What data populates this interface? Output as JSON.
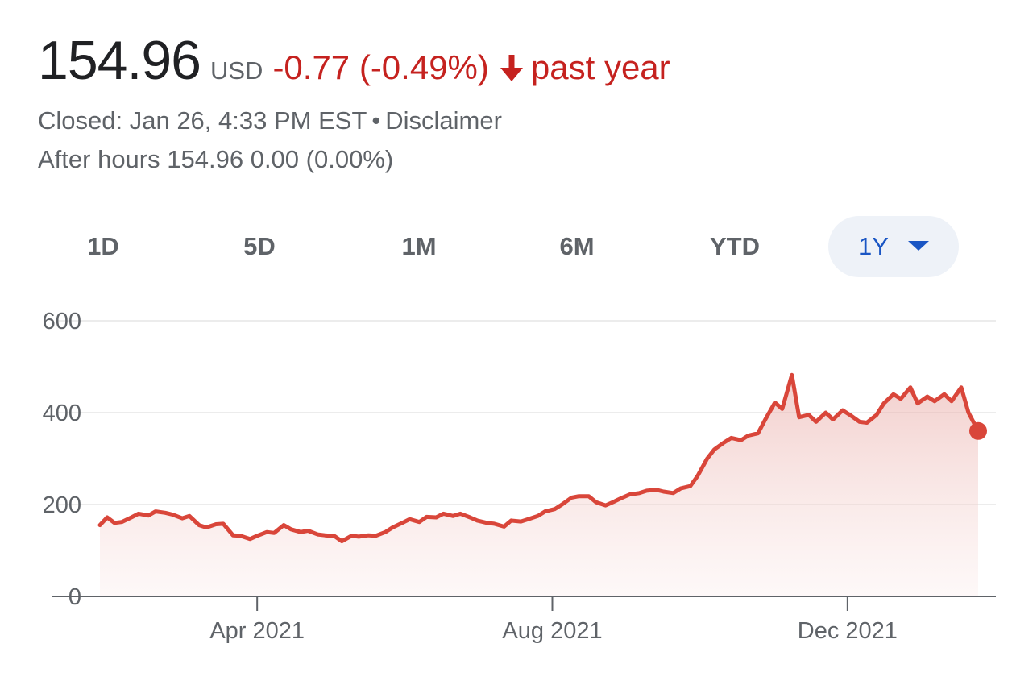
{
  "quote": {
    "price": "154.96",
    "currency": "USD",
    "change": "-0.77 (-0.49%)",
    "direction_icon": "arrow-down-icon",
    "period": "past year",
    "status": "Closed: Jan 26, 4:33 PM EST",
    "separator": "•",
    "disclaimer": "Disclaimer",
    "after_hours_label": "After hours",
    "after_hours_price": "154.96",
    "after_hours_change": "0.00 (0.00%)"
  },
  "colors": {
    "negative": "#c5221f",
    "line": "#d9463a",
    "selected_text": "#1a56c4",
    "selected_bg": "#eef2f8"
  },
  "ranges": [
    {
      "label": "1D"
    },
    {
      "label": "5D"
    },
    {
      "label": "1M"
    },
    {
      "label": "6M"
    },
    {
      "label": "YTD"
    },
    {
      "label": "1Y",
      "selected": true,
      "icon": "caret-down-icon"
    }
  ],
  "chart_data": {
    "type": "area",
    "ylim": [
      0,
      600
    ],
    "y_ticks": [
      0,
      200,
      400,
      600
    ],
    "x_range": [
      "2021-01-26",
      "2022-01-26"
    ],
    "x_ticks": [
      {
        "date": "2021-04-01",
        "label": "Apr 2021"
      },
      {
        "date": "2021-08-01",
        "label": "Aug 2021"
      },
      {
        "date": "2021-12-01",
        "label": "Dec 2021"
      }
    ],
    "grid": true,
    "series": [
      {
        "points": [
          [
            "2021-01-26",
            155
          ],
          [
            "2021-01-29",
            172
          ],
          [
            "2021-02-01",
            160
          ],
          [
            "2021-02-04",
            162
          ],
          [
            "2021-02-08",
            172
          ],
          [
            "2021-02-11",
            180
          ],
          [
            "2021-02-15",
            176
          ],
          [
            "2021-02-18",
            185
          ],
          [
            "2021-02-22",
            182
          ],
          [
            "2021-02-25",
            178
          ],
          [
            "2021-03-01",
            170
          ],
          [
            "2021-03-04",
            175
          ],
          [
            "2021-03-08",
            155
          ],
          [
            "2021-03-11",
            150
          ],
          [
            "2021-03-15",
            157
          ],
          [
            "2021-03-18",
            158
          ],
          [
            "2021-03-22",
            133
          ],
          [
            "2021-03-25",
            132
          ],
          [
            "2021-03-29",
            125
          ],
          [
            "2021-04-01",
            132
          ],
          [
            "2021-04-05",
            140
          ],
          [
            "2021-04-08",
            138
          ],
          [
            "2021-04-12",
            155
          ],
          [
            "2021-04-15",
            146
          ],
          [
            "2021-04-19",
            140
          ],
          [
            "2021-04-22",
            143
          ],
          [
            "2021-04-26",
            135
          ],
          [
            "2021-04-29",
            133
          ],
          [
            "2021-05-03",
            131
          ],
          [
            "2021-05-06",
            120
          ],
          [
            "2021-05-10",
            132
          ],
          [
            "2021-05-13",
            130
          ],
          [
            "2021-05-17",
            133
          ],
          [
            "2021-05-20",
            132
          ],
          [
            "2021-05-24",
            140
          ],
          [
            "2021-05-27",
            150
          ],
          [
            "2021-05-31",
            160
          ],
          [
            "2021-06-03",
            168
          ],
          [
            "2021-06-07",
            162
          ],
          [
            "2021-06-10",
            173
          ],
          [
            "2021-06-14",
            172
          ],
          [
            "2021-06-17",
            180
          ],
          [
            "2021-06-21",
            175
          ],
          [
            "2021-06-24",
            180
          ],
          [
            "2021-06-28",
            172
          ],
          [
            "2021-07-01",
            165
          ],
          [
            "2021-07-05",
            160
          ],
          [
            "2021-07-08",
            158
          ],
          [
            "2021-07-12",
            152
          ],
          [
            "2021-07-15",
            165
          ],
          [
            "2021-07-19",
            163
          ],
          [
            "2021-07-22",
            168
          ],
          [
            "2021-07-26",
            175
          ],
          [
            "2021-07-29",
            185
          ],
          [
            "2021-08-02",
            190
          ],
          [
            "2021-08-05",
            200
          ],
          [
            "2021-08-09",
            215
          ],
          [
            "2021-08-12",
            218
          ],
          [
            "2021-08-16",
            218
          ],
          [
            "2021-08-19",
            205
          ],
          [
            "2021-08-23",
            198
          ],
          [
            "2021-08-26",
            205
          ],
          [
            "2021-08-30",
            215
          ],
          [
            "2021-09-02",
            222
          ],
          [
            "2021-09-06",
            225
          ],
          [
            "2021-09-09",
            230
          ],
          [
            "2021-09-13",
            232
          ],
          [
            "2021-09-16",
            228
          ],
          [
            "2021-09-20",
            225
          ],
          [
            "2021-09-23",
            235
          ],
          [
            "2021-09-27",
            240
          ],
          [
            "2021-09-30",
            262
          ],
          [
            "2021-10-04",
            300
          ],
          [
            "2021-10-07",
            320
          ],
          [
            "2021-10-11",
            335
          ],
          [
            "2021-10-14",
            345
          ],
          [
            "2021-10-18",
            340
          ],
          [
            "2021-10-21",
            350
          ],
          [
            "2021-10-25",
            355
          ],
          [
            "2021-10-28",
            385
          ],
          [
            "2021-11-01",
            422
          ],
          [
            "2021-11-04",
            408
          ],
          [
            "2021-11-08",
            482
          ],
          [
            "2021-11-11",
            390
          ],
          [
            "2021-11-15",
            395
          ],
          [
            "2021-11-18",
            380
          ],
          [
            "2021-11-22",
            400
          ],
          [
            "2021-11-25",
            385
          ],
          [
            "2021-11-29",
            405
          ],
          [
            "2021-12-02",
            395
          ],
          [
            "2021-12-06",
            380
          ],
          [
            "2021-12-09",
            378
          ],
          [
            "2021-12-13",
            395
          ],
          [
            "2021-12-16",
            420
          ],
          [
            "2021-12-20",
            440
          ],
          [
            "2021-12-23",
            430
          ],
          [
            "2021-12-27",
            455
          ],
          [
            "2021-12-30",
            420
          ],
          [
            "2022-01-03",
            435
          ],
          [
            "2022-01-06",
            425
          ],
          [
            "2022-01-10",
            440
          ],
          [
            "2022-01-13",
            425
          ],
          [
            "2022-01-17",
            455
          ],
          [
            "2022-01-20",
            400
          ],
          [
            "2022-01-24",
            360
          ]
        ]
      }
    ]
  }
}
